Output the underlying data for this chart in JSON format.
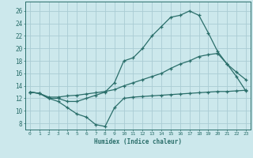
{
  "xlabel": "Humidex (Indice chaleur)",
  "bg_color": "#cce8ec",
  "grid_color": "#aaccd4",
  "line_color": "#2a6e6a",
  "x_ticks": [
    0,
    1,
    2,
    3,
    4,
    5,
    6,
    7,
    8,
    9,
    10,
    11,
    12,
    13,
    14,
    15,
    16,
    17,
    18,
    19,
    20,
    21,
    22,
    23
  ],
  "y_ticks": [
    8,
    10,
    12,
    14,
    16,
    18,
    20,
    22,
    24,
    26
  ],
  "ylim": [
    7.0,
    27.5
  ],
  "xlim": [
    -0.5,
    23.5
  ],
  "line1_x": [
    0,
    1,
    2,
    3,
    4,
    5,
    6,
    7,
    8,
    9,
    10,
    11,
    12,
    13,
    14,
    15,
    16,
    17,
    18,
    19,
    20,
    21,
    22,
    23
  ],
  "line1_y": [
    13.0,
    12.8,
    12.0,
    12.0,
    11.5,
    11.5,
    12.0,
    12.5,
    13.0,
    14.5,
    18.0,
    18.5,
    20.0,
    22.0,
    23.5,
    25.0,
    25.3,
    26.0,
    25.3,
    22.5,
    19.5,
    17.5,
    15.5,
    13.2
  ],
  "line2_x": [
    0,
    1,
    2,
    3,
    4,
    5,
    6,
    7,
    8,
    9,
    10,
    11,
    12,
    13,
    14,
    15,
    16,
    17,
    18,
    19,
    20,
    21,
    22,
    23
  ],
  "line2_y": [
    13.0,
    12.8,
    12.2,
    12.2,
    12.4,
    12.5,
    12.7,
    12.9,
    13.1,
    13.4,
    14.0,
    14.5,
    15.0,
    15.5,
    16.0,
    16.8,
    17.5,
    18.0,
    18.7,
    19.0,
    19.2,
    17.5,
    16.2,
    15.0
  ],
  "line3_x": [
    0,
    1,
    2,
    3,
    4,
    5,
    6,
    7,
    8,
    9,
    10,
    11,
    12,
    13,
    14,
    15,
    16,
    17,
    18,
    19,
    20,
    21,
    22,
    23
  ],
  "line3_y": [
    13.0,
    12.8,
    12.0,
    11.5,
    10.5,
    9.5,
    9.0,
    7.8,
    7.5,
    10.5,
    12.0,
    12.2,
    12.3,
    12.4,
    12.5,
    12.6,
    12.7,
    12.8,
    12.9,
    13.0,
    13.1,
    13.1,
    13.2,
    13.3
  ]
}
